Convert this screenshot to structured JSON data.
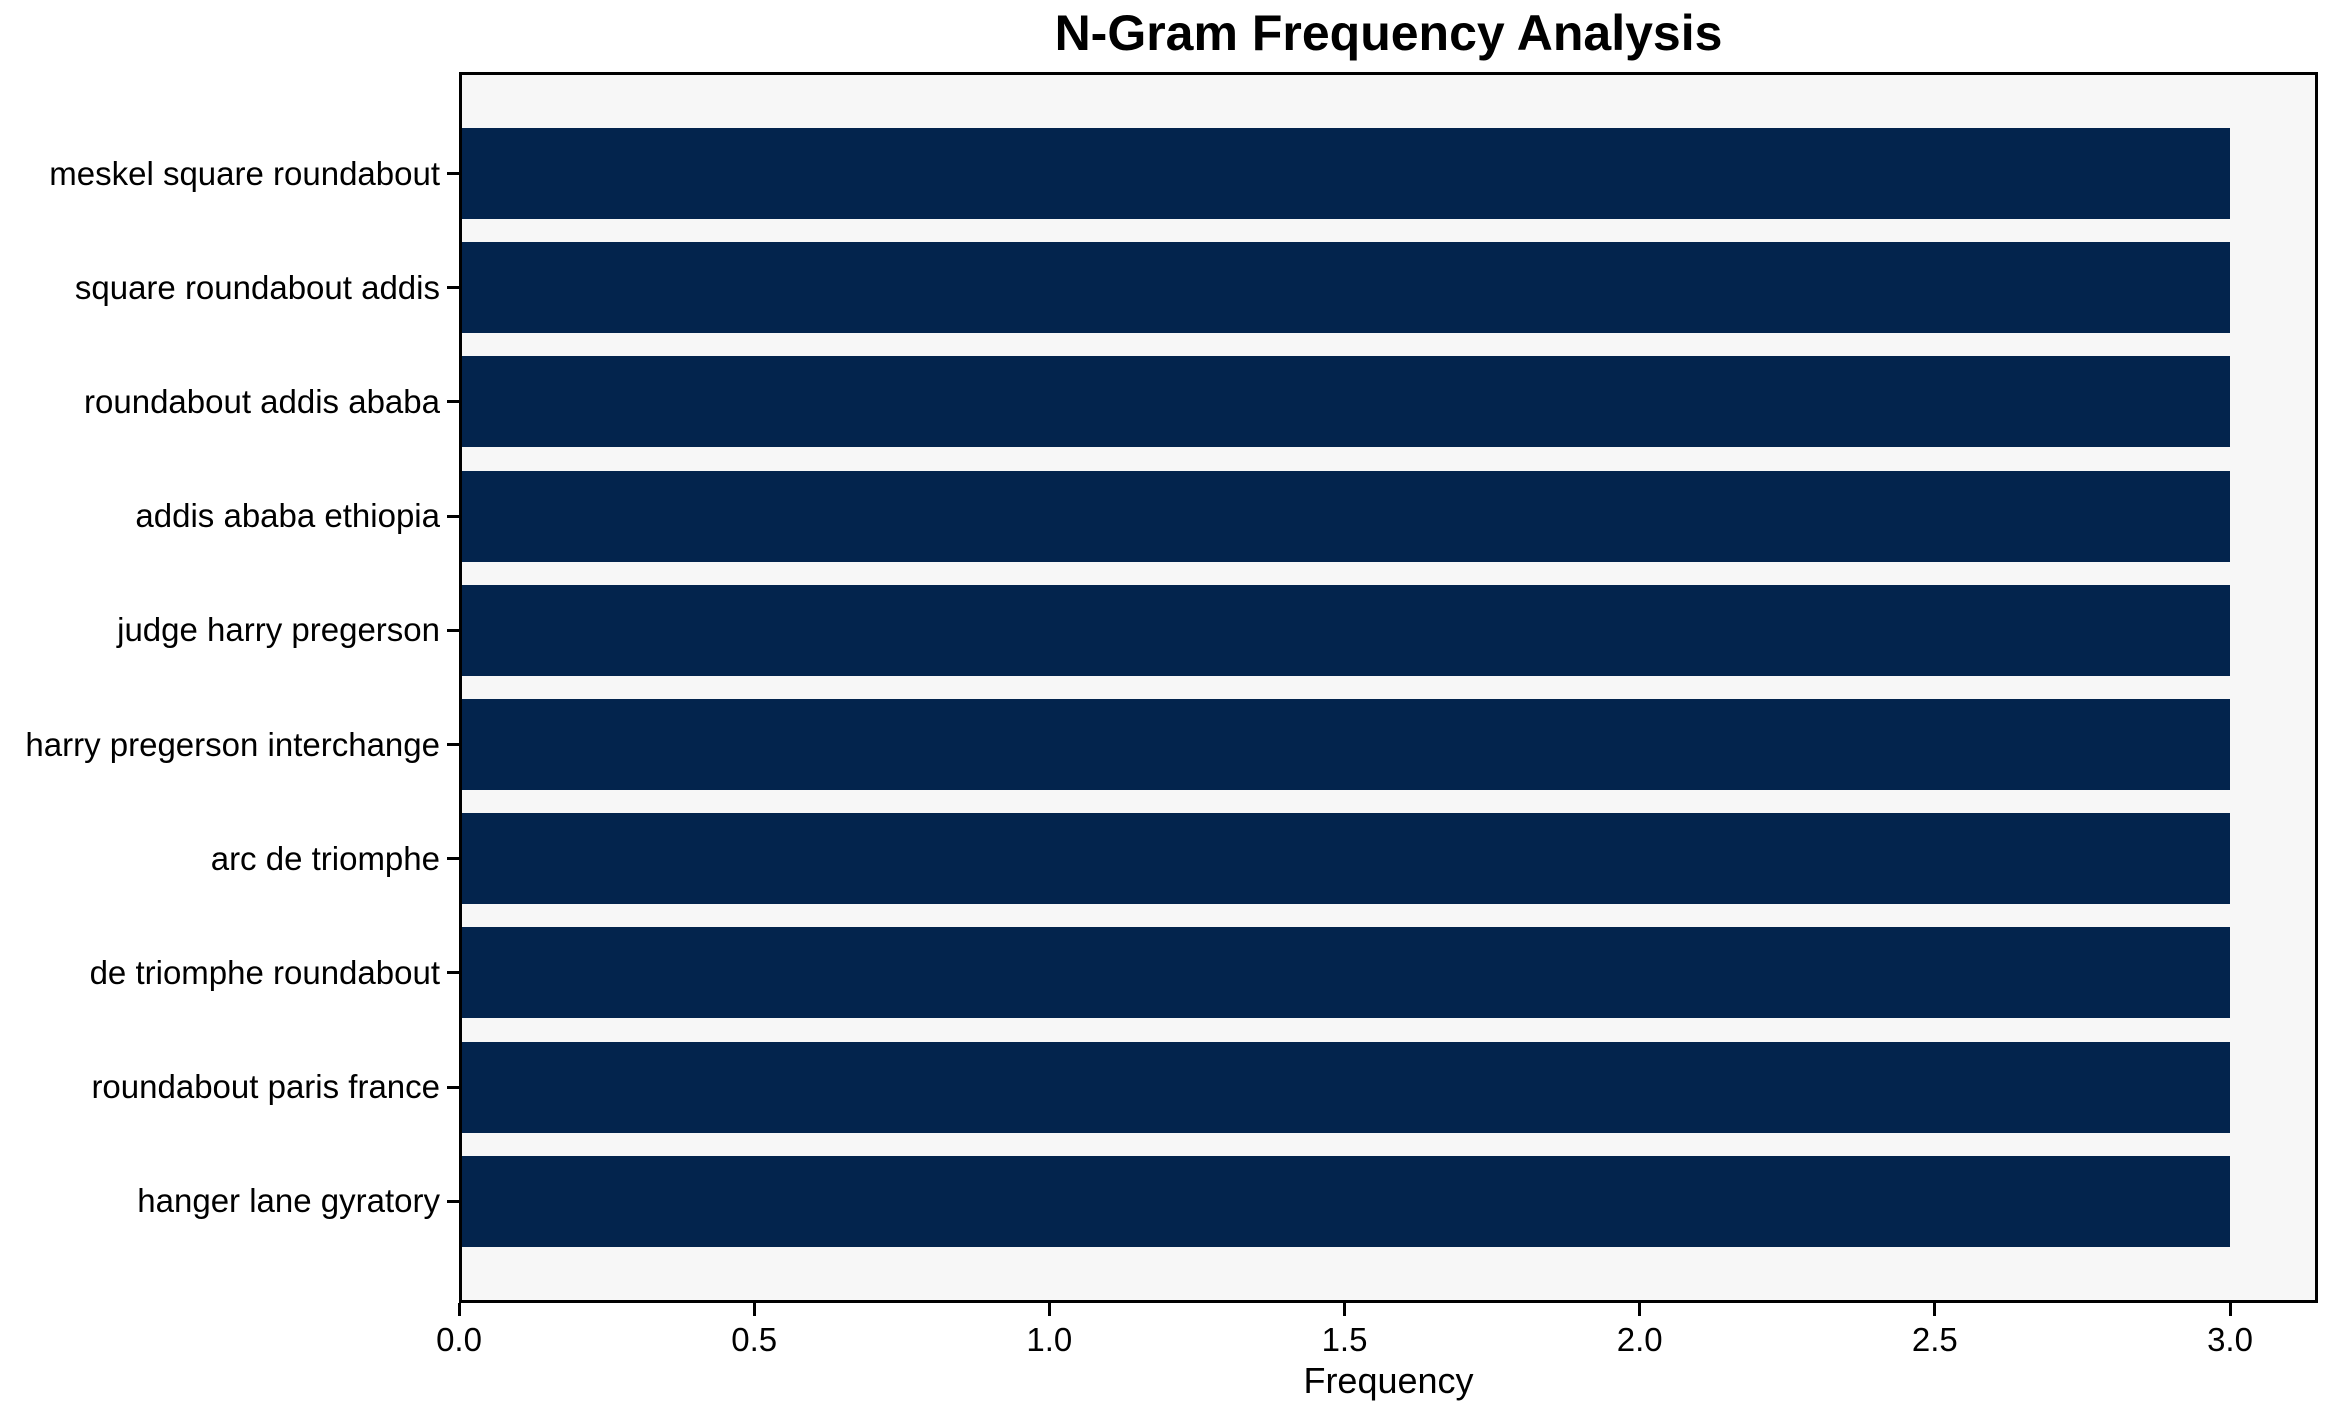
{
  "chart_data": {
    "type": "bar",
    "orientation": "horizontal",
    "title": "N-Gram Frequency Analysis",
    "xlabel": "Frequency",
    "ylabel": "",
    "categories": [
      "meskel square roundabout",
      "square roundabout addis",
      "roundabout addis ababa",
      "addis ababa ethiopia",
      "judge harry pregerson",
      "harry pregerson interchange",
      "arc de triomphe",
      "de triomphe roundabout",
      "roundabout paris france",
      "hanger lane gyratory"
    ],
    "values": [
      3,
      3,
      3,
      3,
      3,
      3,
      3,
      3,
      3,
      3
    ],
    "xlim": [
      0,
      3.145
    ],
    "x_ticks": [
      {
        "value": 0,
        "label": "0.0"
      },
      {
        "value": 0.5,
        "label": "0.5"
      },
      {
        "value": 1,
        "label": "1.0"
      },
      {
        "value": 1.5,
        "label": "1.5"
      },
      {
        "value": 2,
        "label": "2.0"
      },
      {
        "value": 2.5,
        "label": "2.5"
      },
      {
        "value": 3,
        "label": "3.0"
      }
    ],
    "grid": false,
    "legend": false,
    "colors": {
      "bar": "#03244d",
      "plot_background": "#f7f7f7",
      "figure_background": "#ffffff",
      "axis": "#000000",
      "text": "#000000"
    }
  }
}
